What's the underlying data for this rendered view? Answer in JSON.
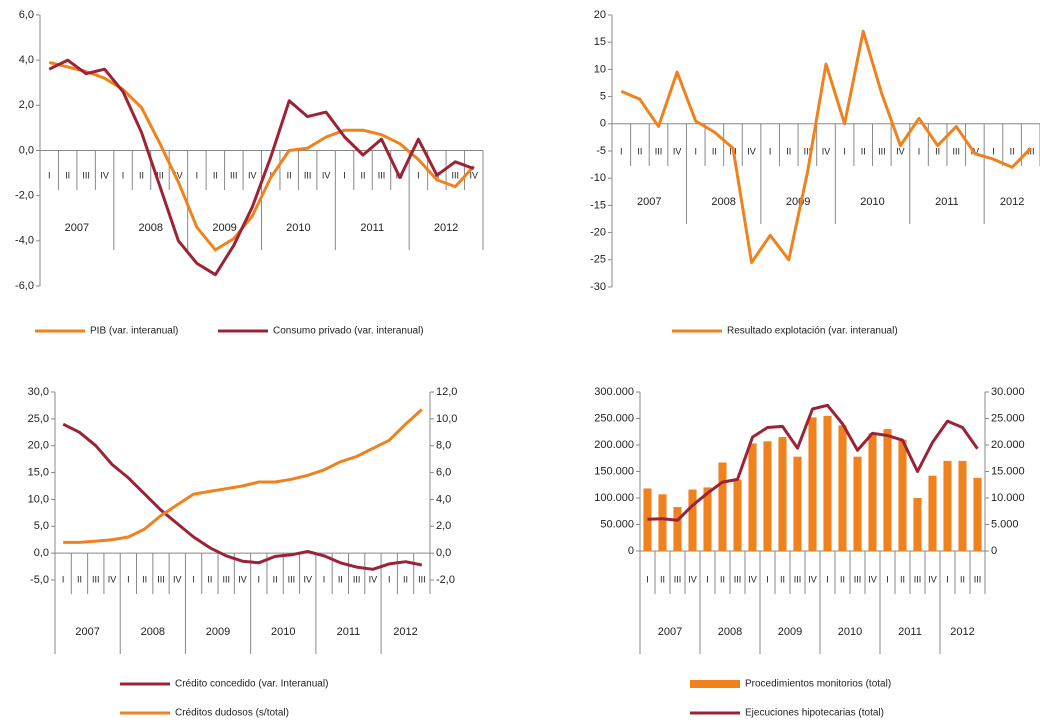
{
  "chart_data": [
    {
      "type": "line",
      "categories": [
        "I",
        "II",
        "III",
        "IV",
        "I",
        "II",
        "III",
        "IV",
        "I",
        "II",
        "III",
        "IV",
        "I",
        "II",
        "III",
        "IV",
        "I",
        "II",
        "III",
        "IV",
        "I",
        "II",
        "III",
        "IV"
      ],
      "year_labels": [
        "2007",
        "2008",
        "2009",
        "2010",
        "2011",
        "2012"
      ],
      "ylim": [
        -6,
        6
      ],
      "yticks": [
        {
          "value": -6,
          "label": "-6,0"
        },
        {
          "value": -4,
          "label": "-4,0"
        },
        {
          "value": -2,
          "label": "-2,0"
        },
        {
          "value": 0,
          "label": "0,0"
        },
        {
          "value": 2,
          "label": "2,0"
        },
        {
          "value": 4,
          "label": "4,0"
        },
        {
          "value": 6,
          "label": "6,0"
        }
      ],
      "series": [
        {
          "name": "PIB (var. interanual)",
          "color": "#f0821e",
          "values": [
            3.9,
            3.7,
            3.5,
            3.2,
            2.7,
            1.9,
            0.3,
            -1.4,
            -3.4,
            -4.4,
            -3.9,
            -2.9,
            -1.2,
            0.0,
            0.1,
            0.6,
            0.9,
            0.9,
            0.7,
            0.3,
            -0.4,
            -1.3,
            -1.6,
            -0.7
          ]
        },
        {
          "name": "Consumo privado (var. interanual)",
          "color": "#9b2335",
          "values": [
            3.6,
            4.0,
            3.4,
            3.6,
            2.6,
            0.8,
            -1.6,
            -4.0,
            -5.0,
            -5.5,
            -4.2,
            -2.5,
            -0.3,
            2.2,
            1.5,
            1.7,
            0.6,
            -0.2,
            0.5,
            -1.2,
            0.5,
            -1.1,
            -0.5,
            -0.8
          ]
        }
      ]
    },
    {
      "type": "line",
      "categories": [
        "I",
        "II",
        "III",
        "IV",
        "I",
        "II",
        "III",
        "IV",
        "I",
        "II",
        "III",
        "IV",
        "I",
        "II",
        "III",
        "IV",
        "I",
        "II",
        "III",
        "IV",
        "I",
        "II",
        "III"
      ],
      "year_labels": [
        "2007",
        "2008",
        "2009",
        "2010",
        "2011",
        "2012"
      ],
      "ylim": [
        -30,
        20
      ],
      "yticks": [
        -30,
        -25,
        -20,
        -15,
        -10,
        -5,
        0,
        5,
        10,
        15,
        20
      ],
      "series": [
        {
          "name": "Resultado explotación (var. interanual)",
          "color": "#f0821e",
          "values": [
            6,
            4.5,
            -0.5,
            9.5,
            0.5,
            -1.5,
            -4.5,
            -25.5,
            -20.5,
            -25,
            -9,
            11,
            0,
            17,
            5.5,
            -4,
            1,
            -4,
            -0.5,
            -5.5,
            -6.5,
            -8,
            -4.5
          ]
        }
      ]
    },
    {
      "type": "line",
      "categories": [
        "I",
        "II",
        "III",
        "IV",
        "I",
        "II",
        "III",
        "IV",
        "I",
        "II",
        "III",
        "IV",
        "I",
        "II",
        "III",
        "IV",
        "I",
        "II",
        "III",
        "IV",
        "I",
        "II",
        "III"
      ],
      "year_labels": [
        "2007",
        "2008",
        "2009",
        "2010",
        "2011",
        "2012"
      ],
      "ylim": [
        -5,
        30
      ],
      "yticks": [
        {
          "value": -5,
          "label": "-5,0"
        },
        {
          "value": 0,
          "label": "0,0"
        },
        {
          "value": 5,
          "label": "5,0"
        },
        {
          "value": 10,
          "label": "10,0"
        },
        {
          "value": 15,
          "label": "15,0"
        },
        {
          "value": 20,
          "label": "20,0"
        },
        {
          "value": 25,
          "label": "25,0"
        },
        {
          "value": 30,
          "label": "30,0"
        }
      ],
      "y2lim": [
        -2,
        12
      ],
      "y2ticks": [
        {
          "value": -2,
          "label": "-2,0"
        },
        {
          "value": 0,
          "label": "0,0"
        },
        {
          "value": 2,
          "label": "2,0"
        },
        {
          "value": 4,
          "label": "4,0"
        },
        {
          "value": 6,
          "label": "6,0"
        },
        {
          "value": 8,
          "label": "8,0"
        },
        {
          "value": 10,
          "label": "10,0"
        },
        {
          "value": 12,
          "label": "12,0"
        }
      ],
      "series": [
        {
          "name": "Crédito concedido (var. Interanual)",
          "color": "#9b2335",
          "values": [
            24,
            22.5,
            20,
            16.5,
            14,
            11,
            8,
            5.5,
            3,
            1,
            -0.5,
            -1.5,
            -1.8,
            -0.6,
            -0.3,
            0.3,
            -0.5,
            -1.8,
            -2.6,
            -3,
            -2,
            -1.6,
            -2.2
          ]
        },
        {
          "name": "Créditos dudosos (s/total)",
          "color": "#f0821e",
          "axis": "y2",
          "values": [
            0.8,
            0.8,
            0.9,
            1.0,
            1.2,
            1.8,
            2.8,
            3.6,
            4.4,
            4.6,
            4.8,
            5.0,
            5.3,
            5.3,
            5.5,
            5.8,
            6.2,
            6.8,
            7.2,
            7.8,
            8.4,
            9.6,
            10.7
          ]
        }
      ]
    },
    {
      "type": "bar",
      "categories": [
        "I",
        "II",
        "III",
        "IV",
        "I",
        "II",
        "III",
        "IV",
        "I",
        "II",
        "III",
        "IV",
        "I",
        "II",
        "III",
        "IV",
        "I",
        "II",
        "III",
        "IV",
        "I",
        "II",
        "III"
      ],
      "year_labels": [
        "2007",
        "2008",
        "2009",
        "2010",
        "2011",
        "2012"
      ],
      "ylim": [
        0,
        300000
      ],
      "yticks": [
        0,
        {
          "value": 50000,
          "label": "50.000"
        },
        {
          "value": 100000,
          "label": "100.000"
        },
        {
          "value": 150000,
          "label": "150.000"
        },
        {
          "value": 200000,
          "label": "200.000"
        },
        {
          "value": 250000,
          "label": "250.000"
        },
        {
          "value": 300000,
          "label": "300.000"
        }
      ],
      "y2lim": [
        0,
        30000
      ],
      "y2ticks": [
        0,
        {
          "value": 5000,
          "label": "5.000"
        },
        {
          "value": 10000,
          "label": "10.000"
        },
        {
          "value": 15000,
          "label": "15.000"
        },
        {
          "value": 20000,
          "label": "20.000"
        },
        {
          "value": 25000,
          "label": "25.000"
        },
        {
          "value": 30000,
          "label": "30.000"
        }
      ],
      "series": [
        {
          "name": "Procedimientos monitorios (total)",
          "color": "#f0821e",
          "type": "bar",
          "values": [
            118000,
            107000,
            83000,
            116000,
            120000,
            167000,
            135000,
            203000,
            207000,
            215000,
            178000,
            252000,
            255000,
            237000,
            178000,
            222000,
            230000,
            210000,
            100000,
            142000,
            170000,
            170000,
            138000
          ]
        },
        {
          "name": "Ejecuciones hipotecarias (total)",
          "color": "#9b2335",
          "type": "line",
          "axis": "y2",
          "values": [
            6000,
            6100,
            5800,
            8600,
            10900,
            13000,
            13500,
            21500,
            23300,
            23500,
            19400,
            26800,
            27500,
            24000,
            19000,
            22200,
            21800,
            20900,
            15000,
            20500,
            24500,
            23300,
            19300
          ]
        }
      ]
    }
  ]
}
